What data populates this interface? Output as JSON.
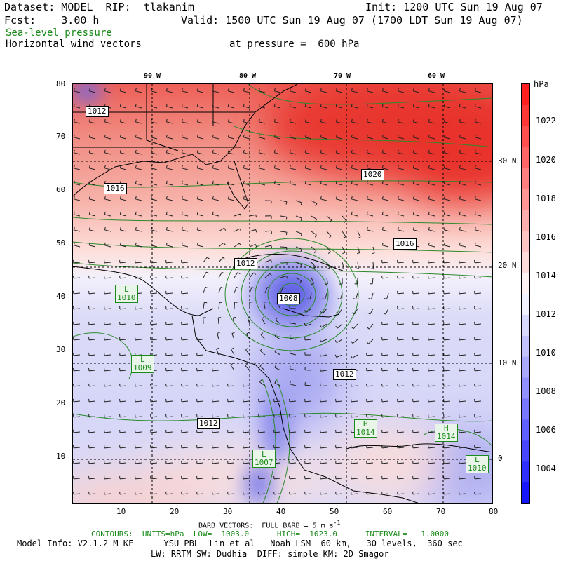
{
  "header": {
    "dataset": "Dataset: MODEL  RIP:  tlakanim",
    "init": "Init: 1200 UTC Sun 19 Aug 07",
    "fcst": "Fcst:    3.00 h",
    "valid": "Valid: 1500 UTC Sun 19 Aug 07 (1700 LDT Sun 19 Aug 07)",
    "field1": "Sea-level pressure",
    "field2": "Horizontal wind vectors",
    "pressure": "at pressure =  600 hPa"
  },
  "map": {
    "y_ticks": [
      "80",
      "70",
      "60",
      "50",
      "40",
      "30",
      "20",
      "10"
    ],
    "x_ticks": [
      "10",
      "20",
      "30",
      "40",
      "50",
      "60",
      "70",
      "80"
    ],
    "lon_labels": [
      "90 W",
      "80 W",
      "70 W",
      "60 W"
    ],
    "lat_labels": [
      "30 N",
      "20 N",
      "10 N",
      "0"
    ],
    "contour_labels": [
      "1012",
      "1016",
      "1020",
      "1016",
      "1012",
      "1012",
      "1012",
      "1008"
    ],
    "lows": [
      {
        "letter": "L",
        "value": "1010"
      },
      {
        "letter": "L",
        "value": "1009"
      },
      {
        "letter": "L",
        "value": "1007"
      },
      {
        "letter": "L",
        "value": "1010"
      }
    ],
    "highs": [
      {
        "letter": "H",
        "value": "1014"
      },
      {
        "letter": "H",
        "value": "1014"
      }
    ],
    "colors": {
      "high": "#e8312b",
      "mid": "#ffffff",
      "low": "#3a3af0",
      "contour_green": "#2a8a2a",
      "coast": "#000000"
    }
  },
  "colorbar": {
    "unit": "hPa",
    "labels": [
      "1022",
      "1020",
      "1018",
      "1016",
      "1014",
      "1012",
      "1010",
      "1008",
      "1006",
      "1004"
    ],
    "min": 1003,
    "max": 1023
  },
  "footer": {
    "barb": "BARB VECTORS:  FULL BARB = 5 m s",
    "barb_exp": "-1",
    "contours": "CONTOURS:  UNITS=hPa  LOW=  1003.0      HIGH=  1023.0      INTERVAL=   1.0000",
    "model1": "Model Info: V2.1.2 M KF      YSU PBL  Lin et al   Noah LSM  60 km,   30 levels,  360 sec",
    "model2": "LW: RRTM SW: Dudhia  DIFF: simple KM: 2D Smagor"
  }
}
